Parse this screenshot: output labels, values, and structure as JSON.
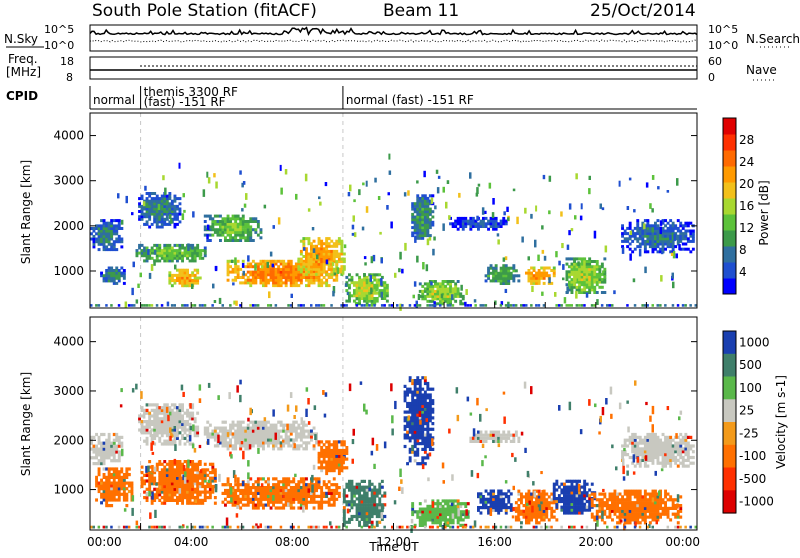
{
  "header": {
    "station": "South Pole Station (fitACF)",
    "beam": "Beam 11",
    "date": "25/Oct/2014"
  },
  "top_panels": {
    "nsky_label": "N.Sky",
    "nsky_ticks": [
      "10^5",
      "10^0"
    ],
    "nsearch_label": "N.Search",
    "nsearch_ticks": [
      "10^5",
      "10^0"
    ],
    "freq_label": "Freq.",
    "freq_unit": "[MHz]",
    "freq_ticks": [
      "18",
      "8"
    ],
    "nave_label": "Nave",
    "nave_ticks": [
      "60",
      "0"
    ],
    "cpid_label": "CPID",
    "cpid_segments": [
      {
        "start_hr": 0.0,
        "end_hr": 2.0,
        "lines": [
          "normal"
        ]
      },
      {
        "start_hr": 2.0,
        "end_hr": 10.0,
        "lines": [
          "themis 3300 RF",
          "(fast) -151 RF"
        ]
      },
      {
        "start_hr": 10.0,
        "end_hr": 24.0,
        "lines": [
          "normal (fast) -151 RF"
        ]
      }
    ]
  },
  "chart_data": [
    {
      "type": "heatmap",
      "name": "Power",
      "xlabel": "",
      "ylabel": "Slant Range [km]",
      "xlim": [
        0,
        24
      ],
      "ylim": [
        180,
        4500
      ],
      "yticks": [
        1000,
        2000,
        3000,
        4000
      ],
      "colorbar": {
        "label": "Power [dB]",
        "ticks": [
          "4",
          "8",
          "12",
          "16",
          "20",
          "24",
          "28"
        ],
        "tick_values": [
          4,
          8,
          12,
          16,
          20,
          24,
          28
        ],
        "range": [
          0,
          32
        ],
        "colors": [
          "#0000ff",
          "#1f4fd0",
          "#2f6f9f",
          "#3c9a4a",
          "#5cc23a",
          "#a8d830",
          "#f2c01a",
          "#ff9a00",
          "#ff6a00",
          "#ff3000",
          "#e00000"
        ]
      },
      "blobs": [
        {
          "t0": 0.0,
          "t1": 1.3,
          "r0": 1450,
          "r1": 2150,
          "v": 8
        },
        {
          "t0": 0.4,
          "t1": 1.4,
          "r0": 700,
          "r1": 1100,
          "v": 9
        },
        {
          "t0": 1.9,
          "t1": 3.6,
          "r0": 1950,
          "r1": 2750,
          "v": 8
        },
        {
          "t0": 1.8,
          "t1": 4.6,
          "r0": 1200,
          "r1": 1600,
          "v": 14
        },
        {
          "t0": 3.1,
          "t1": 4.4,
          "r0": 650,
          "r1": 1050,
          "v": 22
        },
        {
          "t0": 4.5,
          "t1": 6.8,
          "r0": 1650,
          "r1": 2250,
          "v": 13
        },
        {
          "t0": 5.4,
          "t1": 9.9,
          "r0": 650,
          "r1": 1250,
          "v": 25
        },
        {
          "t0": 8.2,
          "t1": 10.1,
          "r0": 900,
          "r1": 1750,
          "v": 23
        },
        {
          "t0": 10.1,
          "t1": 11.8,
          "r0": 250,
          "r1": 950,
          "v": 17
        },
        {
          "t0": 12.7,
          "t1": 13.6,
          "r0": 1700,
          "r1": 2700,
          "v": 10
        },
        {
          "t0": 13.0,
          "t1": 14.8,
          "r0": 250,
          "r1": 800,
          "v": 16
        },
        {
          "t0": 14.2,
          "t1": 16.6,
          "r0": 1900,
          "r1": 2200,
          "v": 5
        },
        {
          "t0": 15.6,
          "t1": 17.0,
          "r0": 700,
          "r1": 1150,
          "v": 12
        },
        {
          "t0": 17.2,
          "t1": 18.4,
          "r0": 700,
          "r1": 1100,
          "v": 24
        },
        {
          "t0": 18.8,
          "t1": 20.4,
          "r0": 500,
          "r1": 1300,
          "v": 16
        },
        {
          "t0": 21.0,
          "t1": 23.9,
          "r0": 1400,
          "r1": 2150,
          "v": 7
        }
      ],
      "scatter_spots": [
        [
          3.5,
          3400,
          6
        ],
        [
          4.6,
          3200,
          12
        ],
        [
          7.5,
          3350,
          6
        ],
        [
          10.9,
          3000,
          10
        ],
        [
          11.8,
          3600,
          14
        ],
        [
          19.4,
          2500,
          8
        ],
        [
          17.6,
          2450,
          16
        ],
        [
          20.9,
          3000,
          5
        ]
      ]
    },
    {
      "type": "heatmap",
      "name": "Velocity",
      "xlabel": "Time UT",
      "ylabel": "Slant Range [km]",
      "xlim": [
        0,
        24
      ],
      "ylim": [
        180,
        4500
      ],
      "yticks": [
        1000,
        2000,
        3000,
        4000
      ],
      "xtick_labels": [
        "00:00",
        "04:00",
        "08:00",
        "12:00",
        "16:00",
        "20:00",
        "00:00"
      ],
      "xtick_values": [
        0,
        4,
        8,
        12,
        16,
        20,
        24
      ],
      "colorbar": {
        "label": "Velocity [m s-1]",
        "ticks": [
          "1000",
          "500",
          "100",
          "25",
          "-25",
          "-100",
          "-500",
          "-1000"
        ],
        "band_colors": [
          "#1a3fb0",
          "#3f7f6a",
          "#5ab84a",
          "#c8c8c0",
          "#f39a1a",
          "#ff7000",
          "#ff3000",
          "#dd0000"
        ]
      },
      "blobs": [
        {
          "t0": 0.0,
          "t1": 1.3,
          "r0": 1500,
          "r1": 2150,
          "v": "#c8c8c0"
        },
        {
          "t0": 0.2,
          "t1": 1.7,
          "r0": 650,
          "r1": 1450,
          "v": "#ff7000"
        },
        {
          "t0": 1.9,
          "t1": 4.3,
          "r0": 1900,
          "r1": 2750,
          "v": "#c8c8c0"
        },
        {
          "t0": 2.0,
          "t1": 5.0,
          "r0": 700,
          "r1": 1600,
          "v": "#ff7000"
        },
        {
          "t0": 4.5,
          "t1": 9.0,
          "r0": 1800,
          "r1": 2400,
          "v": "#c8c8c0"
        },
        {
          "t0": 5.2,
          "t1": 9.9,
          "r0": 600,
          "r1": 1250,
          "v": "#ff7000"
        },
        {
          "t0": 9.0,
          "t1": 10.2,
          "r0": 1300,
          "r1": 2000,
          "v": "#ff7000"
        },
        {
          "t0": 10.0,
          "t1": 11.7,
          "r0": 250,
          "r1": 1200,
          "v": "#3f7f6a"
        },
        {
          "t0": 12.4,
          "t1": 13.6,
          "r0": 1500,
          "r1": 3300,
          "v": "#1a3fb0"
        },
        {
          "t0": 12.7,
          "t1": 15.0,
          "r0": 250,
          "r1": 800,
          "v": "#5ab84a"
        },
        {
          "t0": 15.0,
          "t1": 17.0,
          "r0": 1950,
          "r1": 2200,
          "v": "#c8c8c0"
        },
        {
          "t0": 15.3,
          "t1": 16.7,
          "r0": 500,
          "r1": 1000,
          "v": "#1a3fb0"
        },
        {
          "t0": 16.8,
          "t1": 18.5,
          "r0": 300,
          "r1": 1000,
          "v": "#ff7000"
        },
        {
          "t0": 18.3,
          "t1": 20.0,
          "r0": 500,
          "r1": 1200,
          "v": "#1a3fb0"
        },
        {
          "t0": 19.8,
          "t1": 23.4,
          "r0": 300,
          "r1": 1000,
          "v": "#ff7000"
        },
        {
          "t0": 21.0,
          "t1": 23.9,
          "r0": 1450,
          "r1": 2150,
          "v": "#c8c8c0"
        }
      ]
    }
  ]
}
